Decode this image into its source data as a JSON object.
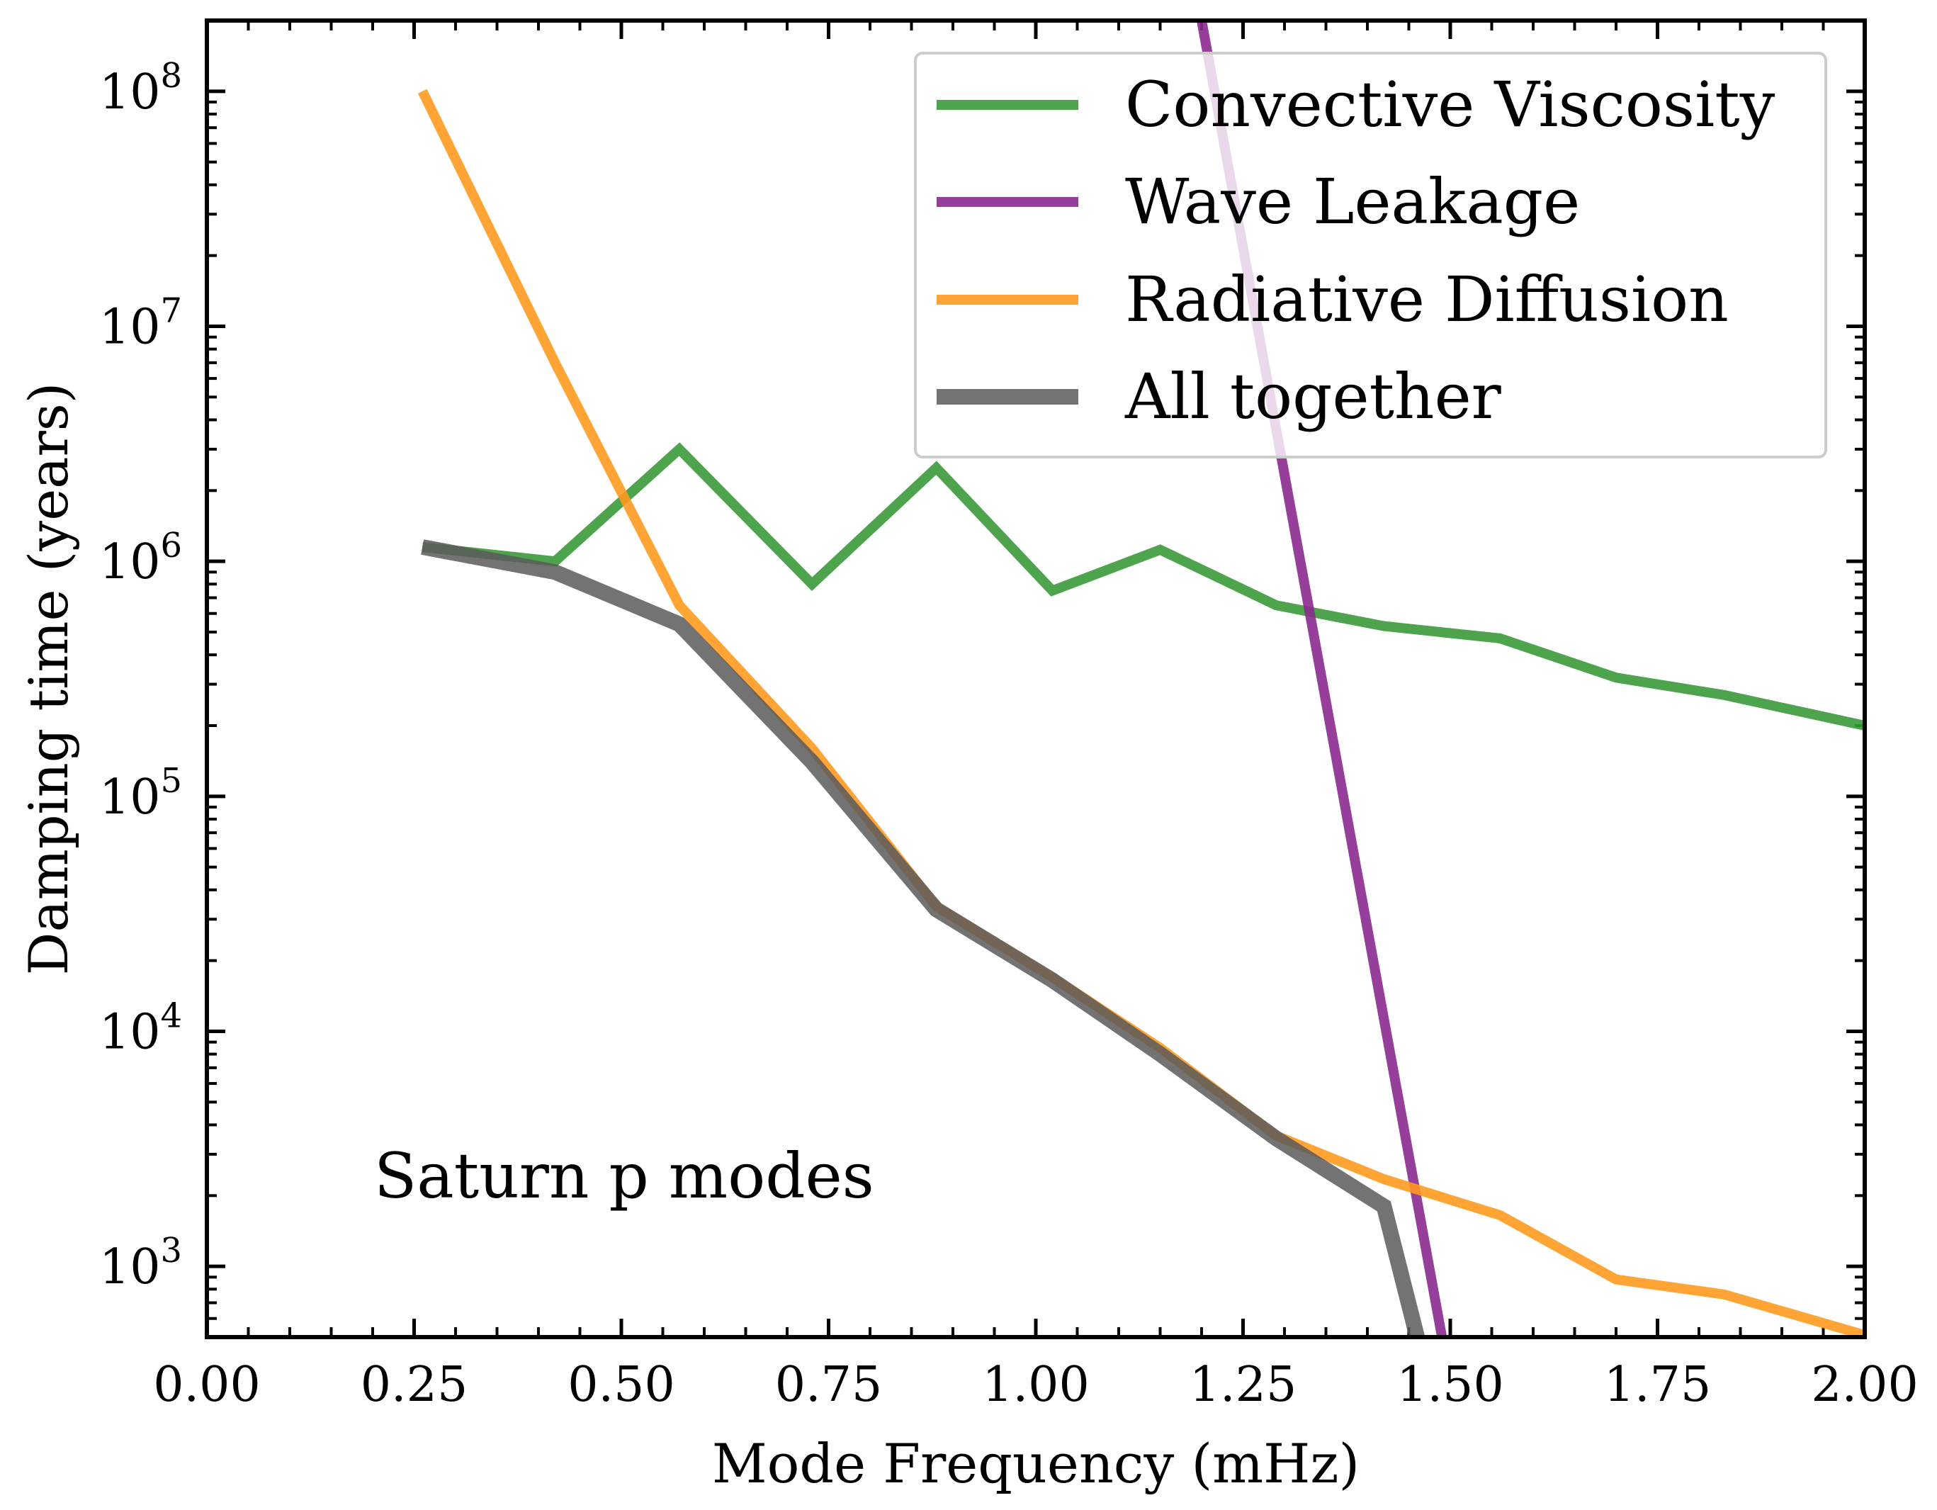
{
  "chart_data": {
    "type": "line",
    "title": "",
    "xlabel": "Mode Frequency (mHz)",
    "ylabel": "Damping time (years)",
    "xlim": [
      0.0,
      2.0
    ],
    "ylim": [
      500,
      200000000
    ],
    "yscale": "log",
    "x_ticks": [
      {
        "value": 0.0,
        "label": "0.00"
      },
      {
        "value": 0.25,
        "label": "0.25"
      },
      {
        "value": 0.5,
        "label": "0.50"
      },
      {
        "value": 0.75,
        "label": "0.75"
      },
      {
        "value": 1.0,
        "label": "1.00"
      },
      {
        "value": 1.25,
        "label": "1.25"
      },
      {
        "value": 1.5,
        "label": "1.50"
      },
      {
        "value": 1.75,
        "label": "1.75"
      },
      {
        "value": 2.0,
        "label": "2.00"
      }
    ],
    "y_ticks": [
      {
        "value": 1000,
        "base": "10",
        "exp": "3"
      },
      {
        "value": 10000,
        "base": "10",
        "exp": "4"
      },
      {
        "value": 100000,
        "base": "10",
        "exp": "5"
      },
      {
        "value": 1000000,
        "base": "10",
        "exp": "6"
      },
      {
        "value": 10000000,
        "base": "10",
        "exp": "7"
      },
      {
        "value": 100000000,
        "base": "10",
        "exp": "8"
      }
    ],
    "legend_position": "top-right",
    "annotation": "Saturn p modes",
    "series": [
      {
        "name": "Convective Viscosity",
        "color": "#3a9a3a",
        "x": [
          0.26,
          0.42,
          0.57,
          0.73,
          0.88,
          1.02,
          1.15,
          1.29,
          1.42,
          1.56,
          1.7,
          1.83,
          2.0
        ],
        "y": [
          1150000,
          1000000,
          3000000,
          800000,
          2500000,
          750000,
          1120000,
          650000,
          530000,
          470000,
          320000,
          270000,
          200000
        ]
      },
      {
        "name": "Wave Leakage",
        "color": "#8b2a8f",
        "x": [
          1.2,
          1.49
        ],
        "y": [
          200000000,
          500
        ]
      },
      {
        "name": "Radiative Diffusion",
        "color": "#ff9a1f",
        "x": [
          0.26,
          0.42,
          0.57,
          0.73,
          0.88,
          1.02,
          1.15,
          1.29,
          1.42,
          1.56,
          1.7,
          1.83,
          2.0
        ],
        "y": [
          100000000,
          7000000,
          650000,
          160000,
          34000,
          17000,
          8500,
          3600,
          2350,
          1650,
          880,
          760,
          510
        ]
      },
      {
        "name": "All together",
        "color": "#5a5a5a",
        "x": [
          0.26,
          0.42,
          0.57,
          0.73,
          0.88,
          1.02,
          1.15,
          1.29,
          1.42,
          1.46
        ],
        "y": [
          1150000,
          900000,
          540000,
          140000,
          33000,
          16500,
          8000,
          3500,
          1800,
          500
        ]
      }
    ]
  }
}
